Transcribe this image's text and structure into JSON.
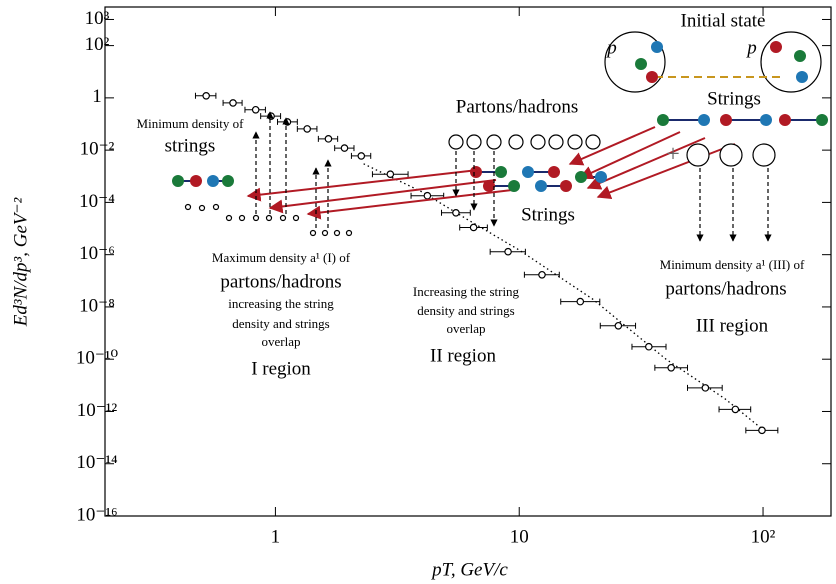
{
  "chart_data": {
    "type": "scatter",
    "x_label": "pT, GeV/c",
    "y_label": "Ed³N/dp³, GeV⁻²",
    "log_x": true,
    "log_y": true,
    "xlim": [
      0.2,
      190
    ],
    "ylim": [
      1e-16,
      3000
    ],
    "xticks": [
      1,
      10,
      {
        "value": 100,
        "label": "10²"
      }
    ],
    "yticks": [
      {
        "value": 1000,
        "label": "10³"
      },
      {
        "value": 100,
        "label": "10²"
      },
      1,
      {
        "value": 0.01,
        "label": "10⁻²"
      },
      {
        "value": 0.0001,
        "label": "10⁻⁴"
      },
      {
        "value": 1e-06,
        "label": "10⁻⁶"
      },
      {
        "value": 1e-08,
        "label": "10⁻⁸"
      },
      {
        "value": 1e-10,
        "label": "10⁻¹⁰"
      },
      {
        "value": 1e-12,
        "label": "10⁻¹²"
      },
      {
        "value": 1e-14,
        "label": "10⁻¹⁴"
      },
      {
        "value": 1e-16,
        "label": "10⁻¹⁶"
      }
    ],
    "points": {
      "color": "#000000",
      "x": [
        0.52,
        0.67,
        0.83,
        0.96,
        1.12,
        1.35,
        1.65,
        1.92,
        2.25,
        2.96,
        4.2,
        5.5,
        6.5,
        9.0,
        12.4,
        17.8,
        25.5,
        34,
        42,
        58,
        77,
        99
      ],
      "x_low": [
        0.47,
        0.61,
        0.75,
        0.87,
        1.02,
        1.23,
        1.5,
        1.75,
        2.05,
        2.5,
        3.6,
        4.8,
        5.7,
        7.6,
        10.5,
        14.8,
        21.5,
        29,
        36,
        49,
        66,
        85
      ],
      "x_high": [
        0.57,
        0.73,
        0.91,
        1.05,
        1.23,
        1.48,
        1.8,
        2.1,
        2.46,
        3.5,
        4.9,
        6.3,
        7.4,
        10.6,
        14.6,
        21.4,
        30,
        40,
        49,
        68,
        89,
        115
      ],
      "y": [
        1.2,
        0.64,
        0.35,
        0.2,
        0.12,
        0.065,
        0.027,
        0.012,
        0.006,
        0.0012,
        0.00018,
        4e-05,
        1.1e-05,
        1.3e-06,
        1.7e-07,
        1.6e-08,
        1.9e-09,
        3e-10,
        4.7e-11,
        8e-12,
        1.2e-12,
        1.9e-13
      ]
    },
    "fit": {
      "x": [
        2.3,
        4,
        6,
        10,
        20,
        40,
        70,
        100
      ],
      "y": [
        0.003,
        0.00025,
        2.5e-05,
        1.5e-06,
        2e-08,
        1e-10,
        3e-12,
        2e-13
      ]
    },
    "annotations": [
      "Initial state",
      "p",
      "p",
      "Strings",
      "Partons/hadrons",
      "Minimum density of",
      "strings",
      "Strings",
      "Maximum density a¹ (I) of",
      "partons/hadrons",
      "increasing the string",
      "density and strings",
      "overlap",
      "I region",
      "Increasing the string",
      "density and strings",
      "overlap",
      "II region",
      "Minimum density a¹ (III) of",
      "partons/hadrons",
      "III region",
      "+"
    ]
  }
}
